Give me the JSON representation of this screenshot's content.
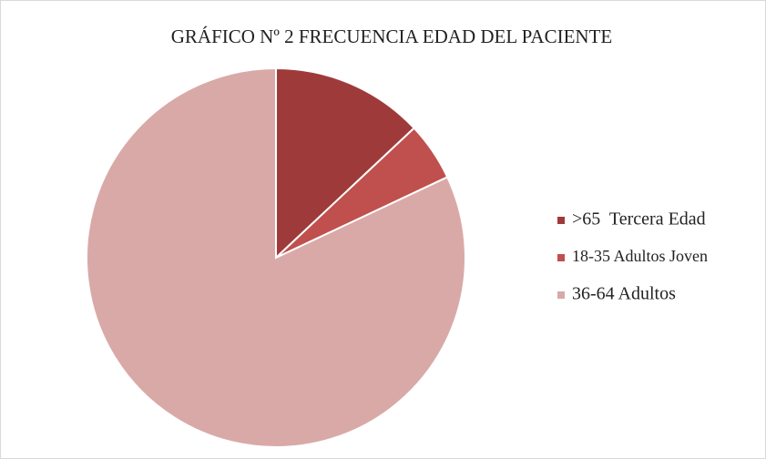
{
  "chart_data": {
    "type": "pie",
    "title": "GRÁFICO Nº 2 FRECUENCIA EDAD DEL PACIENTE",
    "categories": [
      ">65  Tercera Edad",
      "18-35 Adultos Joven",
      "36-64 Adultos"
    ],
    "values": [
      13,
      5,
      82
    ],
    "colors": [
      "#9e3b3a",
      "#c0504d",
      "#d9a9a8"
    ],
    "legend": "right"
  }
}
